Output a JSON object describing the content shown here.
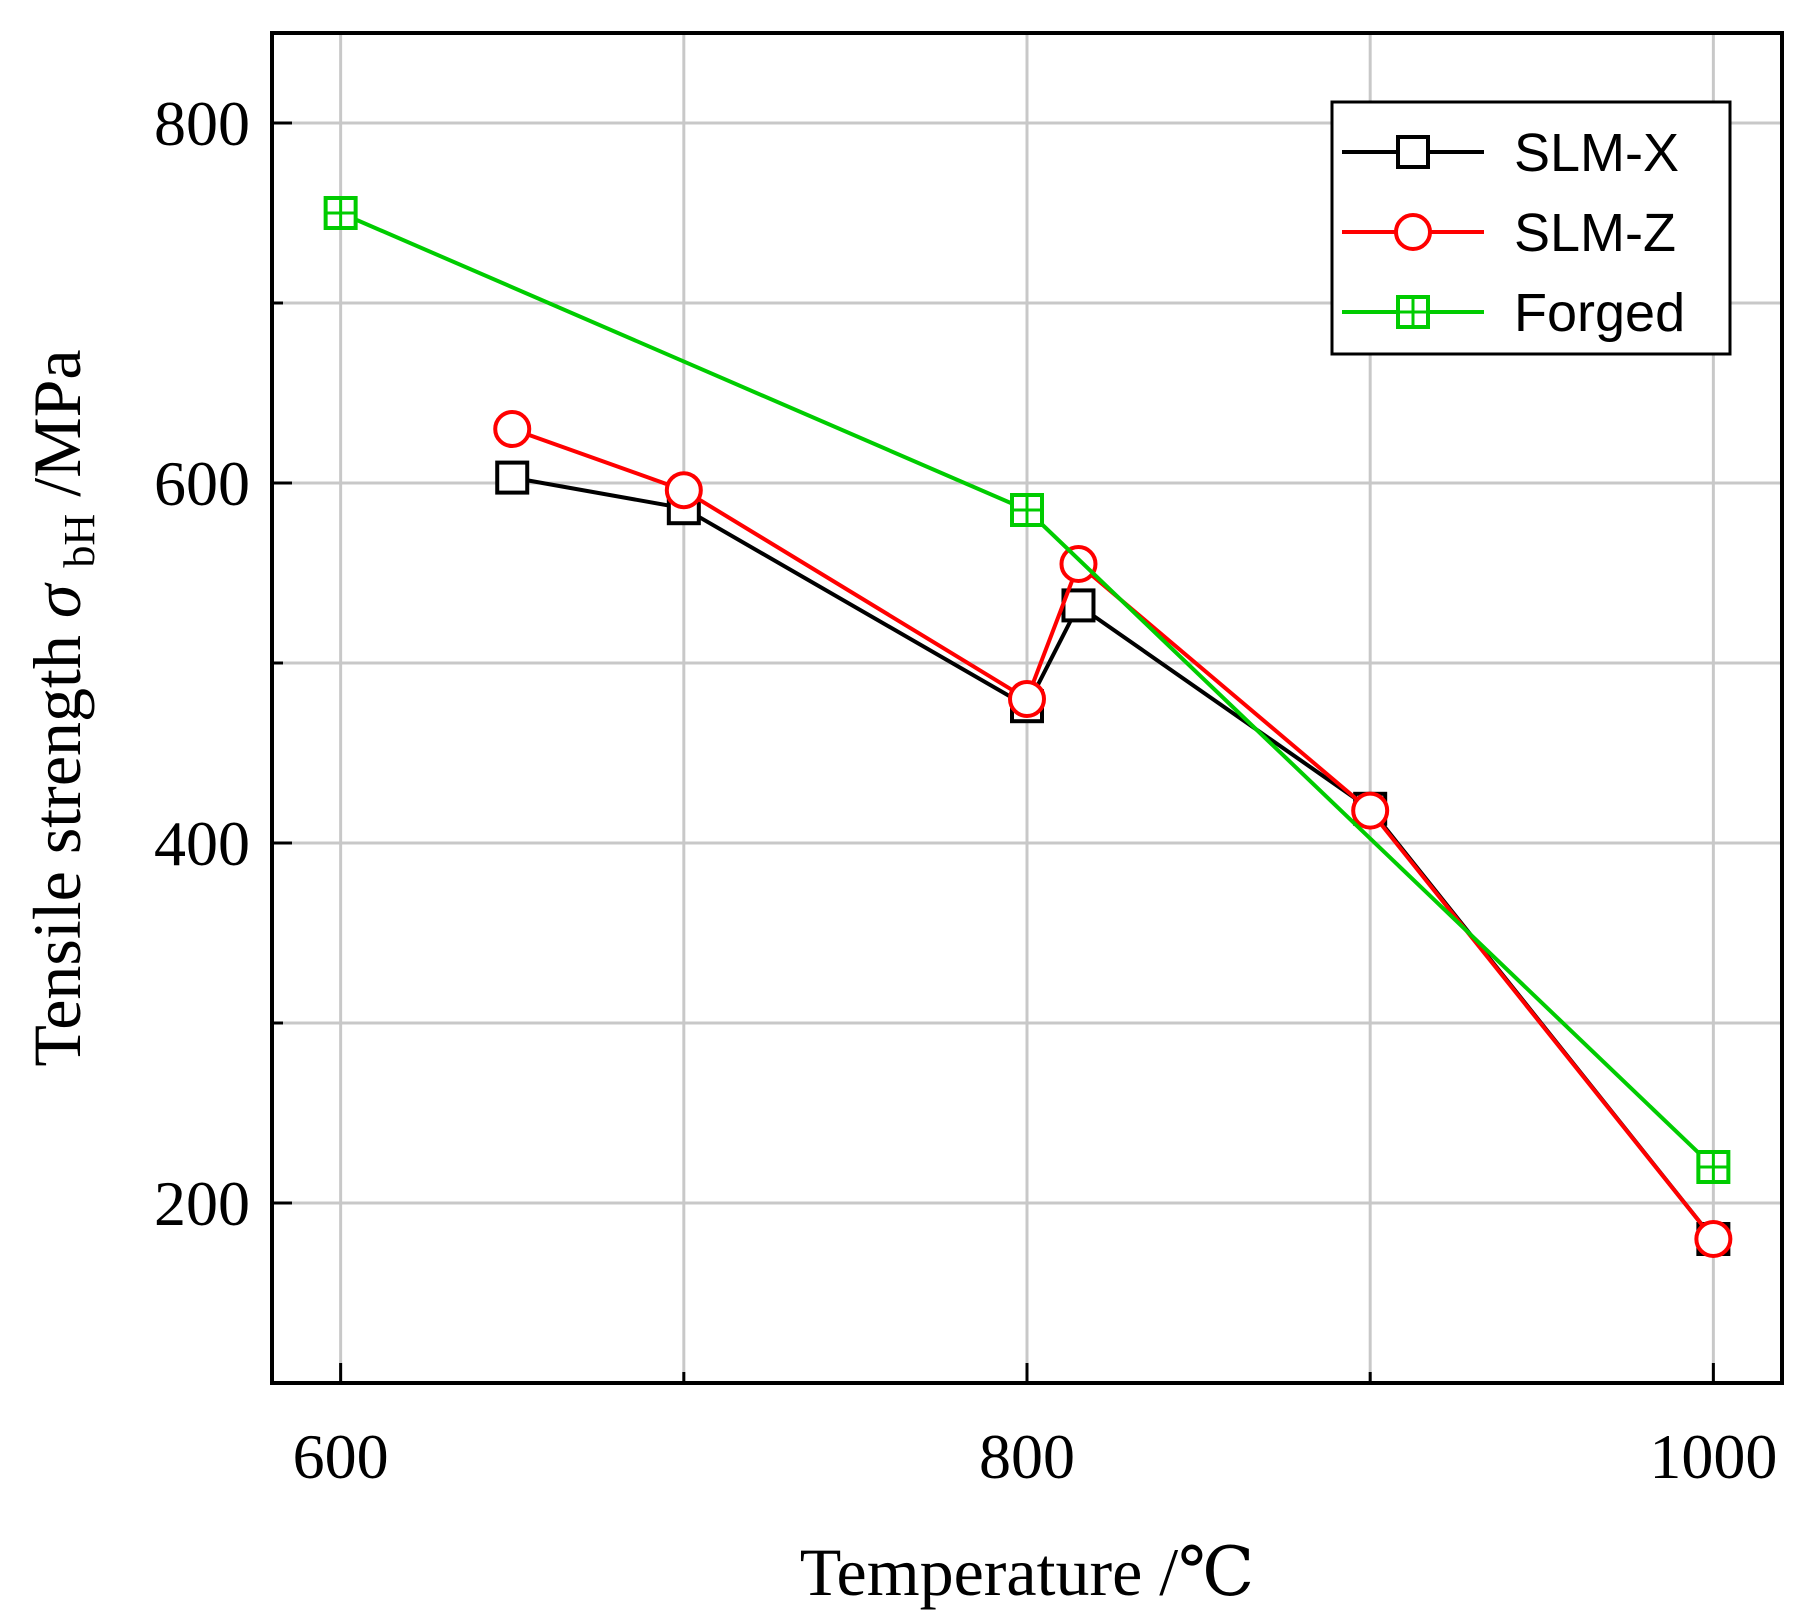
{
  "chart_data": {
    "type": "line",
    "title": "",
    "xlabel": "Temperature  /℃",
    "ylabel": {
      "prefix": "Tensile strength ",
      "symbol": "σ",
      "subscript": "bH",
      "suffix": "/MPa"
    },
    "xlim": [
      580,
      1020
    ],
    "ylim": [
      100,
      850
    ],
    "x_ticks": [
      600,
      800,
      1000
    ],
    "x_tick_labels": [
      "600",
      "800",
      "1000"
    ],
    "x_minor_ticks": [
      700,
      900
    ],
    "y_ticks": [
      200,
      400,
      600,
      800
    ],
    "y_tick_labels": [
      "200",
      "400",
      "600",
      "800"
    ],
    "y_minor_ticks": [
      300,
      500,
      700
    ],
    "grid": true,
    "legend_position": "top-right",
    "series": [
      {
        "name": "SLM-X",
        "color": "#000000",
        "marker": "square",
        "x": [
          650,
          700,
          800,
          815,
          900,
          1000
        ],
        "y": [
          603,
          586,
          476,
          532,
          419,
          180
        ]
      },
      {
        "name": "SLM-Z",
        "color": "#ff0000",
        "marker": "circle",
        "x": [
          650,
          700,
          800,
          815,
          900,
          1000
        ],
        "y": [
          630,
          596,
          480,
          555,
          418,
          180
        ]
      },
      {
        "name": "Forged",
        "color": "#00cc00",
        "marker": "square-cross",
        "x": [
          600,
          800,
          1000
        ],
        "y": [
          750,
          585,
          220
        ]
      }
    ]
  }
}
